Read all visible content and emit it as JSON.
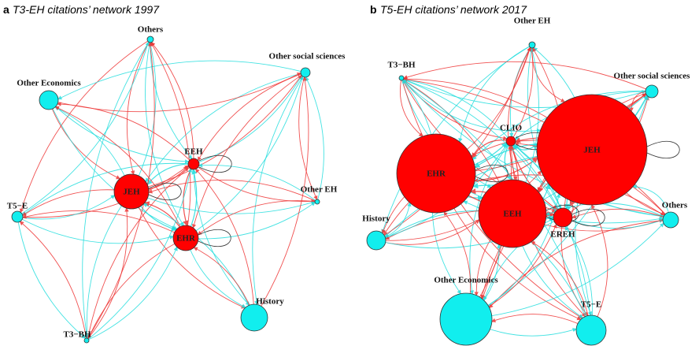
{
  "panels": [
    {
      "letter": "a",
      "title": "T3-EH citations’ network 1997",
      "nodes": [
        {
          "label": "Others"
        },
        {
          "label": "Other social sciences"
        },
        {
          "label": "Other Economics"
        },
        {
          "label": "EEH"
        },
        {
          "label": "JEH"
        },
        {
          "label": "Other EH"
        },
        {
          "label": "T5−E"
        },
        {
          "label": "EHR"
        },
        {
          "label": "History"
        },
        {
          "label": "T3−BH"
        }
      ]
    },
    {
      "letter": "b",
      "title": "T5-EH citations’ network 2017",
      "nodes": [
        {
          "label": "Other EH"
        },
        {
          "label": "T3−BH"
        },
        {
          "label": "Other social sciences"
        },
        {
          "label": "CLIO"
        },
        {
          "label": "JEH"
        },
        {
          "label": "EHR"
        },
        {
          "label": "EEH"
        },
        {
          "label": "EREH"
        },
        {
          "label": "Others"
        },
        {
          "label": "History"
        },
        {
          "label": "Other Economics"
        },
        {
          "label": "T5−E"
        }
      ]
    }
  ]
}
